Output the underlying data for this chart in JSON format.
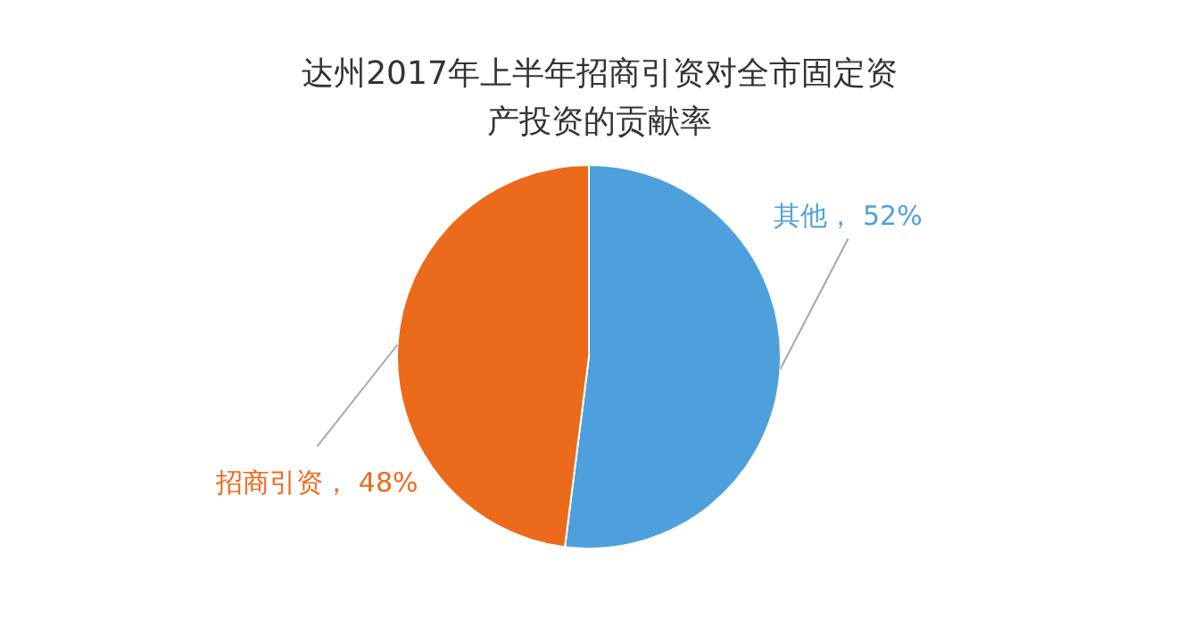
{
  "chart_data": {
    "type": "pie",
    "title": "达州2017年上半年招商引资对全市固定资产投资的贡献率",
    "categories": [
      "其他",
      "招商引资"
    ],
    "values": [
      52,
      48
    ],
    "colors": [
      "#4ea0dc",
      "#ec6a1c"
    ],
    "value_labels": [
      "52%",
      "48%"
    ],
    "legend": false
  }
}
